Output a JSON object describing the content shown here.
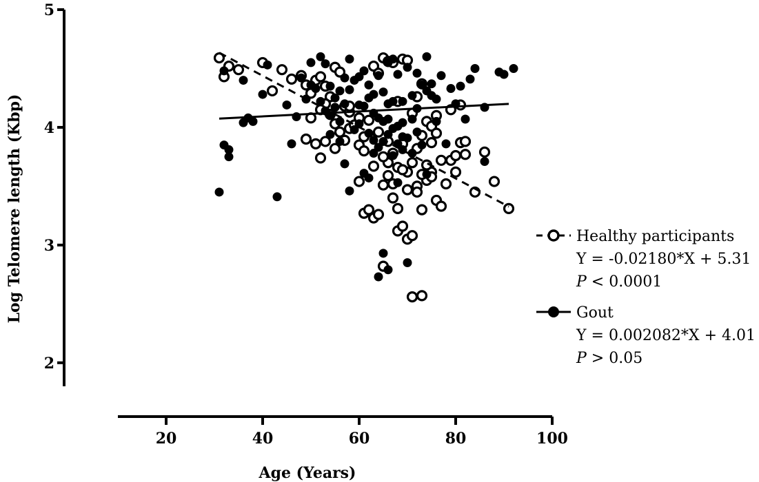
{
  "chart_data": {
    "type": "scatter",
    "xlabel": "Age (Years)",
    "ylabel": "Log Telomere length (Kbp)",
    "xlim": [
      10,
      100
    ],
    "ylim": [
      1.8,
      5
    ],
    "x_ticks": [
      20,
      40,
      60,
      80,
      100
    ],
    "y_ticks": [
      2,
      3,
      4,
      5
    ],
    "series": [
      {
        "name": "Healthy participants",
        "marker": "open-circle",
        "line_style": "dashed",
        "regression": {
          "slope": -0.0218,
          "intercept": 5.31,
          "x_range": [
            31,
            91
          ]
        },
        "equation": "Y = -0.02180*X + 5.31",
        "p_prefix": "P",
        "p_value": " < 0.0001",
        "points": [
          [
            31,
            4.59
          ],
          [
            32,
            4.43
          ],
          [
            33,
            4.52
          ],
          [
            35,
            4.49
          ],
          [
            40,
            4.55
          ],
          [
            42,
            4.31
          ],
          [
            44,
            4.49
          ],
          [
            46,
            4.41
          ],
          [
            48,
            4.44
          ],
          [
            49,
            4.36
          ],
          [
            50,
            4.29
          ],
          [
            51,
            4.4
          ],
          [
            52,
            4.43
          ],
          [
            53,
            4.35
          ],
          [
            54,
            4.26
          ],
          [
            55,
            4.51
          ],
          [
            56,
            4.47
          ],
          [
            57,
            4.18
          ],
          [
            58,
            4.13
          ],
          [
            49,
            3.9
          ],
          [
            51,
            3.86
          ],
          [
            52,
            3.74
          ],
          [
            53,
            3.88
          ],
          [
            55,
            3.82
          ],
          [
            56,
            3.96
          ],
          [
            57,
            3.89
          ],
          [
            58,
            3.99
          ],
          [
            60,
            3.85
          ],
          [
            61,
            3.92
          ],
          [
            62,
            4.06
          ],
          [
            63,
            4.52
          ],
          [
            64,
            4.46
          ],
          [
            65,
            4.59
          ],
          [
            66,
            4.56
          ],
          [
            67,
            4.55
          ],
          [
            69,
            4.58
          ],
          [
            70,
            4.57
          ],
          [
            68,
            4.22
          ],
          [
            71,
            4.12
          ],
          [
            72,
            4.26
          ],
          [
            73,
            4.37
          ],
          [
            74,
            4.05
          ],
          [
            75,
            4.01
          ],
          [
            76,
            4.1
          ],
          [
            77,
            3.72
          ],
          [
            78,
            3.52
          ],
          [
            79,
            4.15
          ],
          [
            80,
            3.62
          ],
          [
            81,
            3.87
          ],
          [
            82,
            3.77
          ],
          [
            84,
            3.45
          ],
          [
            86,
            3.79
          ],
          [
            88,
            3.54
          ],
          [
            91,
            3.31
          ],
          [
            60,
            3.54
          ],
          [
            61,
            3.27
          ],
          [
            62,
            3.3
          ],
          [
            63,
            3.23
          ],
          [
            64,
            3.26
          ],
          [
            65,
            3.51
          ],
          [
            66,
            3.59
          ],
          [
            67,
            3.4
          ],
          [
            68,
            3.31
          ],
          [
            68,
            3.12
          ],
          [
            69,
            3.16
          ],
          [
            70,
            3.05
          ],
          [
            71,
            3.08
          ],
          [
            65,
            2.82
          ],
          [
            71,
            2.56
          ],
          [
            73,
            2.57
          ],
          [
            70,
            3.47
          ],
          [
            72,
            3.5
          ],
          [
            73,
            3.3
          ],
          [
            74,
            3.55
          ],
          [
            75,
            3.62
          ],
          [
            76,
            3.38
          ],
          [
            77,
            3.33
          ],
          [
            66,
            3.7
          ],
          [
            67,
            3.78
          ],
          [
            68,
            3.66
          ],
          [
            69,
            3.86
          ],
          [
            70,
            3.62
          ],
          [
            71,
            3.7
          ],
          [
            72,
            3.82
          ],
          [
            73,
            3.93
          ],
          [
            74,
            3.68
          ],
          [
            75,
            3.58
          ],
          [
            58,
            4.18
          ],
          [
            59,
            4.02
          ],
          [
            60,
            4.08
          ],
          [
            79,
            3.72
          ],
          [
            80,
            3.76
          ],
          [
            81,
            4.19
          ],
          [
            82,
            3.88
          ],
          [
            55,
            4.03
          ],
          [
            54,
            4.11
          ],
          [
            53,
            4.2
          ],
          [
            52,
            4.15
          ],
          [
            50,
            4.08
          ],
          [
            67,
            3.52
          ],
          [
            69,
            3.64
          ],
          [
            72,
            3.45
          ],
          [
            73,
            3.6
          ],
          [
            64,
            3.96
          ],
          [
            65,
            3.75
          ],
          [
            66,
            3.88
          ],
          [
            75,
            3.87
          ],
          [
            76,
            3.95
          ],
          [
            61,
            3.8
          ],
          [
            63,
            3.67
          ]
        ]
      },
      {
        "name": "Gout",
        "marker": "filled-circle",
        "line_style": "solid",
        "regression": {
          "slope": 0.002082,
          "intercept": 4.01,
          "x_range": [
            31,
            91
          ]
        },
        "equation": "Y = 0.002082*X + 4.01",
        "p_prefix": "P",
        "p_value": " > 0.05",
        "points": [
          [
            31,
            3.45
          ],
          [
            32,
            3.85
          ],
          [
            33,
            3.81
          ],
          [
            33,
            3.75
          ],
          [
            32,
            4.48
          ],
          [
            36,
            4.4
          ],
          [
            36,
            4.04
          ],
          [
            37,
            4.08
          ],
          [
            38,
            4.05
          ],
          [
            40,
            4.28
          ],
          [
            41,
            4.53
          ],
          [
            43,
            3.41
          ],
          [
            45,
            4.19
          ],
          [
            46,
            3.86
          ],
          [
            47,
            4.09
          ],
          [
            48,
            4.42
          ],
          [
            49,
            4.24
          ],
          [
            50,
            4.55
          ],
          [
            50,
            4.36
          ],
          [
            51,
            4.33
          ],
          [
            52,
            4.6
          ],
          [
            52,
            4.22
          ],
          [
            53,
            4.54
          ],
          [
            53,
            4.14
          ],
          [
            54,
            4.1
          ],
          [
            54,
            4.35
          ],
          [
            55,
            4.25
          ],
          [
            55,
            4.17
          ],
          [
            56,
            4.31
          ],
          [
            56,
            4.05
          ],
          [
            57,
            4.42
          ],
          [
            57,
            4.2
          ],
          [
            57,
            3.69
          ],
          [
            58,
            4.58
          ],
          [
            58,
            4.32
          ],
          [
            58,
            3.46
          ],
          [
            59,
            3.98
          ],
          [
            60,
            4.03
          ],
          [
            60,
            4.43
          ],
          [
            61,
            4.18
          ],
          [
            61,
            3.61
          ],
          [
            61,
            4.48
          ],
          [
            62,
            4.36
          ],
          [
            62,
            3.95
          ],
          [
            62,
            3.57
          ],
          [
            63,
            4.28
          ],
          [
            63,
            4.12
          ],
          [
            63,
            3.78
          ],
          [
            64,
            4.44
          ],
          [
            64,
            4.08
          ],
          [
            64,
            3.83
          ],
          [
            64,
            2.73
          ],
          [
            65,
            4.3
          ],
          [
            65,
            4.05
          ],
          [
            65,
            3.88
          ],
          [
            65,
            2.93
          ],
          [
            66,
            4.55
          ],
          [
            66,
            4.2
          ],
          [
            66,
            3.94
          ],
          [
            66,
            2.79
          ],
          [
            67,
            4.58
          ],
          [
            67,
            4.22
          ],
          [
            67,
            3.99
          ],
          [
            67,
            3.76
          ],
          [
            68,
            4.45
          ],
          [
            68,
            4.01
          ],
          [
            68,
            3.86
          ],
          [
            68,
            3.53
          ],
          [
            69,
            4.22
          ],
          [
            69,
            4.04
          ],
          [
            69,
            3.81
          ],
          [
            70,
            4.51
          ],
          [
            70,
            3.91
          ],
          [
            70,
            2.85
          ],
          [
            71,
            4.27
          ],
          [
            71,
            4.07
          ],
          [
            71,
            3.78
          ],
          [
            72,
            4.46
          ],
          [
            72,
            4.16
          ],
          [
            72,
            3.96
          ],
          [
            73,
            4.36
          ],
          [
            73,
            3.85
          ],
          [
            74,
            4.6
          ],
          [
            74,
            4.31
          ],
          [
            74,
            3.6
          ],
          [
            75,
            4.37
          ],
          [
            75,
            4.27
          ],
          [
            76,
            4.24
          ],
          [
            76,
            4.05
          ],
          [
            77,
            4.44
          ],
          [
            78,
            3.86
          ],
          [
            79,
            4.33
          ],
          [
            80,
            4.2
          ],
          [
            81,
            4.35
          ],
          [
            82,
            4.07
          ],
          [
            83,
            4.41
          ],
          [
            84,
            4.5
          ],
          [
            86,
            4.17
          ],
          [
            86,
            3.71
          ],
          [
            89,
            4.47
          ],
          [
            90,
            4.45
          ],
          [
            92,
            4.5
          ],
          [
            54,
            3.94
          ],
          [
            56,
            3.88
          ],
          [
            59,
            4.4
          ],
          [
            60,
            4.19
          ],
          [
            62,
            4.25
          ],
          [
            63,
            3.89
          ],
          [
            66,
            4.07
          ],
          [
            69,
            3.92
          ]
        ]
      }
    ],
    "legend_position": "right",
    "grid": false
  }
}
